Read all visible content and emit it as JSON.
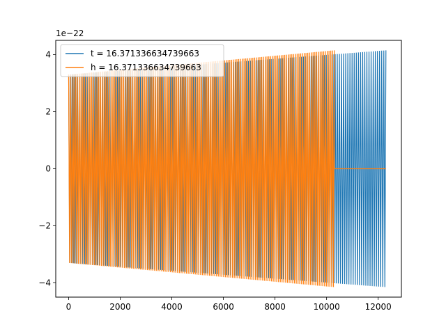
{
  "chart_data": {
    "type": "line",
    "title": "",
    "xlabel": "",
    "ylabel": "",
    "y_offset_label": "1e−22",
    "xlim": [
      -500,
      12900
    ],
    "ylim": [
      -4.5,
      4.5
    ],
    "x_ticks": [
      0,
      2000,
      4000,
      6000,
      8000,
      10000,
      12000
    ],
    "x_tick_labels": [
      "0",
      "2000",
      "4000",
      "6000",
      "8000",
      "10000",
      "12000"
    ],
    "y_ticks": [
      -4,
      -2,
      0,
      2,
      4
    ],
    "y_tick_labels": [
      "−4",
      "−2",
      "0",
      "2",
      "4"
    ],
    "grid": false,
    "legend_position": "top-left",
    "series": [
      {
        "name": "t = 16.371336634739663",
        "color": "#1f77b4",
        "x_start": 0,
        "x_end": 12300,
        "upper_envelope": [
          [
            0,
            3.3
          ],
          [
            12300,
            4.15
          ]
        ],
        "lower_envelope": [
          [
            0,
            -3.3
          ],
          [
            12300,
            -4.15
          ]
        ],
        "baseline": 0
      },
      {
        "name": "h = 16.371336634739663",
        "color": "#ff7f0e",
        "x_start": 0,
        "x_end": 10300,
        "upper_envelope": [
          [
            0,
            3.3
          ],
          [
            10300,
            4.15
          ]
        ],
        "lower_envelope": [
          [
            0,
            -3.3
          ],
          [
            10300,
            -4.15
          ]
        ],
        "baseline": 0,
        "flat_until": 12300
      }
    ]
  }
}
